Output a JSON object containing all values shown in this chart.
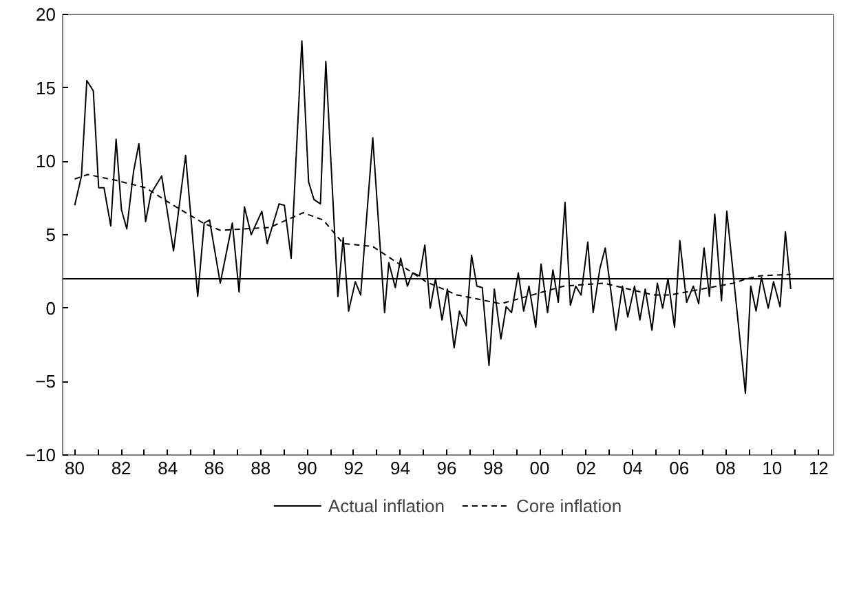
{
  "chart_data": {
    "type": "line",
    "xlim": [
      1979.48,
      2012.64
    ],
    "ylim": [
      -10,
      20
    ],
    "xticks": [
      {
        "value": 1980,
        "label": "80"
      },
      {
        "value": 1981,
        "label": null
      },
      {
        "value": 1982,
        "label": "82"
      },
      {
        "value": 1983,
        "label": null
      },
      {
        "value": 1984,
        "label": "84"
      },
      {
        "value": 1985,
        "label": null
      },
      {
        "value": 1986,
        "label": "86"
      },
      {
        "value": 1987,
        "label": null
      },
      {
        "value": 1988,
        "label": "88"
      },
      {
        "value": 1989,
        "label": null
      },
      {
        "value": 1990,
        "label": "90"
      },
      {
        "value": 1991,
        "label": null
      },
      {
        "value": 1992,
        "label": "92"
      },
      {
        "value": 1993,
        "label": null
      },
      {
        "value": 1994,
        "label": "94"
      },
      {
        "value": 1995,
        "label": null
      },
      {
        "value": 1996,
        "label": "96"
      },
      {
        "value": 1997,
        "label": null
      },
      {
        "value": 1998,
        "label": "98"
      },
      {
        "value": 1999,
        "label": null
      },
      {
        "value": 2000,
        "label": "00"
      },
      {
        "value": 2001,
        "label": null
      },
      {
        "value": 2002,
        "label": "02"
      },
      {
        "value": 2003,
        "label": null
      },
      {
        "value": 2004,
        "label": "04"
      },
      {
        "value": 2005,
        "label": null
      },
      {
        "value": 2006,
        "label": "06"
      },
      {
        "value": 2007,
        "label": null
      },
      {
        "value": 2008,
        "label": "08"
      },
      {
        "value": 2009,
        "label": null
      },
      {
        "value": 2010,
        "label": "10"
      },
      {
        "value": 2011,
        "label": null
      },
      {
        "value": 2012,
        "label": "12"
      }
    ],
    "yticks": [
      -10,
      -5,
      0,
      5,
      10,
      15,
      20
    ],
    "grid": false,
    "legend": "bottom",
    "ref_lines": [
      {
        "axis": "y",
        "value": 2,
        "color": "#000000"
      }
    ],
    "series": [
      {
        "name": "Actual inflation",
        "color": "#000000",
        "line_style": "solid",
        "x": [
          1980.0,
          1980.29,
          1980.52,
          1980.8,
          1981.03,
          1981.26,
          1981.55,
          1981.78,
          1982.01,
          1982.24,
          1982.53,
          1982.76,
          1983.05,
          1983.28,
          1983.74,
          1984.25,
          1984.77,
          1985.29,
          1985.57,
          1985.8,
          1986.26,
          1986.78,
          1987.07,
          1987.3,
          1987.59,
          1988.05,
          1988.28,
          1988.79,
          1989.02,
          1989.31,
          1989.77,
          1990.06,
          1990.29,
          1990.57,
          1990.8,
          1991.32,
          1991.55,
          1991.78,
          1992.07,
          1992.3,
          1992.82,
          1993.33,
          1993.51,
          1993.79,
          1994.02,
          1994.31,
          1994.54,
          1994.83,
          1995.06,
          1995.29,
          1995.52,
          1995.8,
          1996.03,
          1996.32,
          1996.55,
          1996.84,
          1997.07,
          1997.3,
          1997.53,
          1997.82,
          1998.05,
          1998.33,
          1998.56,
          1998.79,
          1999.08,
          1999.31,
          1999.54,
          1999.83,
          2000.06,
          2000.34,
          2000.57,
          2000.8,
          2001.09,
          2001.32,
          2001.55,
          2001.78,
          2002.07,
          2002.3,
          2002.59,
          2002.82,
          2003.28,
          2003.56,
          2003.79,
          2004.08,
          2004.31,
          2004.54,
          2004.83,
          2005.06,
          2005.29,
          2005.52,
          2005.8,
          2006.03,
          2006.32,
          2006.61,
          2006.84,
          2007.07,
          2007.3,
          2007.53,
          2007.82,
          2008.05,
          2008.85,
          2009.08,
          2009.31,
          2009.54,
          2009.83,
          2010.06,
          2010.34,
          2010.57,
          2010.8
        ],
        "values": [
          7.0,
          9.0,
          15.5,
          14.8,
          8.2,
          8.2,
          5.6,
          11.5,
          6.7,
          5.4,
          9.3,
          11.2,
          5.9,
          7.8,
          9.0,
          3.9,
          10.4,
          0.8,
          5.8,
          6.0,
          1.7,
          5.8,
          1.1,
          6.9,
          5.0,
          6.6,
          4.4,
          7.1,
          7.0,
          3.4,
          18.2,
          8.6,
          7.4,
          7.1,
          16.8,
          0.8,
          4.8,
          -0.2,
          1.8,
          0.9,
          11.6,
          -0.3,
          3.1,
          1.4,
          3.4,
          1.5,
          2.4,
          2.2,
          4.3,
          0.0,
          2.0,
          -0.8,
          1.3,
          -2.7,
          -0.2,
          -1.2,
          3.6,
          1.5,
          1.4,
          -3.9,
          1.3,
          -2.1,
          0.1,
          -0.3,
          2.4,
          -0.2,
          1.5,
          -1.3,
          3.0,
          -0.3,
          2.6,
          0.4,
          7.2,
          0.2,
          1.5,
          0.9,
          4.5,
          -0.3,
          2.7,
          4.1,
          -1.5,
          1.5,
          -0.6,
          1.5,
          -0.8,
          1.3,
          -1.5,
          1.7,
          0.0,
          2.0,
          -1.3,
          4.6,
          0.4,
          1.5,
          0.3,
          4.1,
          0.8,
          6.4,
          0.5,
          6.6,
          -5.8,
          1.5,
          -0.2,
          2.1,
          0.0,
          1.8,
          0.1,
          5.2,
          1.3
        ]
      },
      {
        "name": "Core inflation",
        "color": "#000000",
        "line_style": "dashed",
        "x": [
          1980.0,
          1980.57,
          1981.78,
          1983.05,
          1984.25,
          1985.52,
          1986.26,
          1988.39,
          1989.83,
          1990.69,
          1991.55,
          1992.82,
          1995.11,
          1996.44,
          1998.33,
          2001.03,
          2002.76,
          2004.89,
          2005.63,
          2008.33,
          2008.91,
          2009.48,
          2010.8
        ],
        "values": [
          8.8,
          9.1,
          8.7,
          8.2,
          7.0,
          5.8,
          5.3,
          5.5,
          6.5,
          6.0,
          4.4,
          4.2,
          1.8,
          0.9,
          0.3,
          1.5,
          1.7,
          0.9,
          0.9,
          1.7,
          2.0,
          2.2,
          2.3
        ]
      }
    ]
  }
}
